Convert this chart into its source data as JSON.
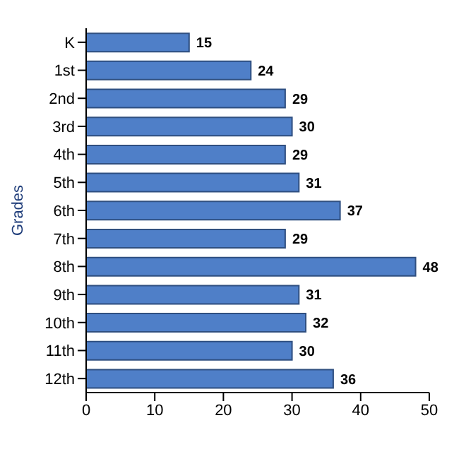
{
  "chart_data": {
    "type": "bar",
    "orientation": "horizontal",
    "ylabel": "Grades",
    "categories": [
      "K",
      "1st",
      "2nd",
      "3rd",
      "4th",
      "5th",
      "6th",
      "7th",
      "8th",
      "9th",
      "10th",
      "11th",
      "12th"
    ],
    "values": [
      15,
      24,
      29,
      30,
      29,
      31,
      37,
      29,
      48,
      31,
      32,
      30,
      36
    ],
    "color": "#4f7fc8",
    "xlim": [
      0,
      50
    ],
    "xticks": [
      0,
      10,
      20,
      30,
      40,
      50
    ],
    "data_labels": true,
    "grid": false,
    "legend": false
  }
}
